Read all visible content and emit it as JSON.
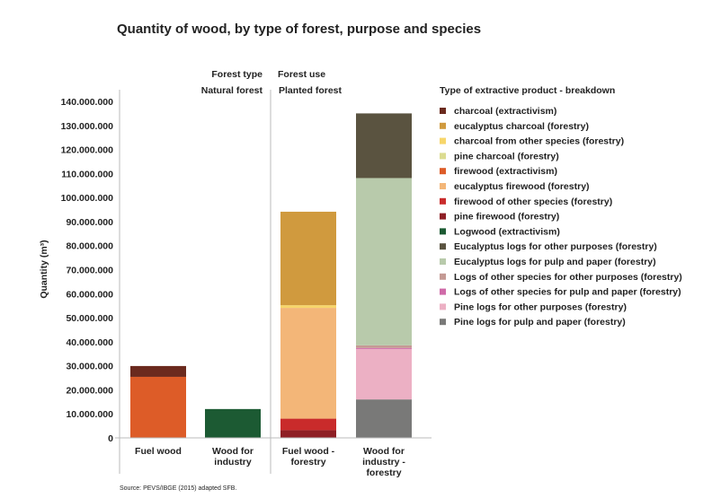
{
  "chart_data": {
    "type": "bar",
    "stacked": true,
    "title": "Quantity of wood, by type of forest, purpose and species",
    "ylabel": "Quantity (m³)",
    "xlabel": "",
    "ylim": [
      0,
      140000000
    ],
    "yticks": [
      "0",
      "10.000.000",
      "20.000.000",
      "30.000.000",
      "40.000.000",
      "50.000.000",
      "60.000.000",
      "70.000.000",
      "80.000.000",
      "90.000.000",
      "100.000.000",
      "110.000.000",
      "120.000.000",
      "130.000.000",
      "140.000.000"
    ],
    "header_labels": {
      "forest_type": "Forest type",
      "forest_use": "Forest use",
      "natural": "Natural forest",
      "planted": "Planted forest"
    },
    "categories": [
      [
        "Fuel wood"
      ],
      [
        "Wood for",
        "industry"
      ],
      [
        "Fuel wood -",
        "forestry"
      ],
      [
        "Wood for",
        "industry -",
        "forestry"
      ]
    ],
    "legend_title": "Type of extractive product - breakdown",
    "legend_placement": "right",
    "source": "Source: PEVS/IBGE (2015) adapted SFB.",
    "series": [
      {
        "name": "charcoal (extractivism)",
        "color": "#6b2a1e",
        "values": [
          4500000,
          0,
          0,
          0
        ]
      },
      {
        "name": "eucalyptus charcoal (forestry)",
        "color": "#d09a3e",
        "values": [
          0,
          0,
          38900000,
          0
        ]
      },
      {
        "name": "charcoal from other species (forestry)",
        "color": "#f7d66a",
        "values": [
          0,
          0,
          1100000,
          0
        ]
      },
      {
        "name": "pine charcoal (forestry)",
        "color": "#dcdc90",
        "values": [
          0,
          0,
          0,
          0
        ]
      },
      {
        "name": "firewood (extractivism)",
        "color": "#dd5c28",
        "values": [
          25400000,
          0,
          0,
          0
        ]
      },
      {
        "name": "eucalyptus firewood (forestry)",
        "color": "#f3b678",
        "values": [
          0,
          0,
          46100000,
          0
        ]
      },
      {
        "name": "firewood of other species (forestry)",
        "color": "#c92b2b",
        "values": [
          0,
          0,
          4800000,
          0
        ]
      },
      {
        "name": "pine firewood (forestry)",
        "color": "#8e1f25",
        "values": [
          0,
          0,
          3200000,
          0
        ]
      },
      {
        "name": "Logwood (extractivism)",
        "color": "#1c5a33",
        "values": [
          0,
          12000000,
          0,
          0
        ]
      },
      {
        "name": "Eucalyptus logs for other purposes (forestry)",
        "color": "#5a5340",
        "values": [
          0,
          0,
          0,
          26900000
        ]
      },
      {
        "name": "Eucalyptus logs for pulp and paper (forestry)",
        "color": "#b8caab",
        "values": [
          0,
          0,
          0,
          69600000
        ]
      },
      {
        "name": "Logs of other species for other purposes (forestry)",
        "color": "#c49a94",
        "values": [
          0,
          0,
          0,
          1100000
        ]
      },
      {
        "name": "Logs of other species for pulp and paper (forestry)",
        "color": "#cf6aa8",
        "values": [
          0,
          0,
          0,
          400000
        ]
      },
      {
        "name": "Pine logs for other purposes (forestry)",
        "color": "#ecb0c4",
        "values": [
          0,
          0,
          0,
          21000000
        ]
      },
      {
        "name": "Pine logs for pulp and paper (forestry)",
        "color": "#797978",
        "values": [
          0,
          0,
          0,
          16000000
        ]
      }
    ]
  }
}
